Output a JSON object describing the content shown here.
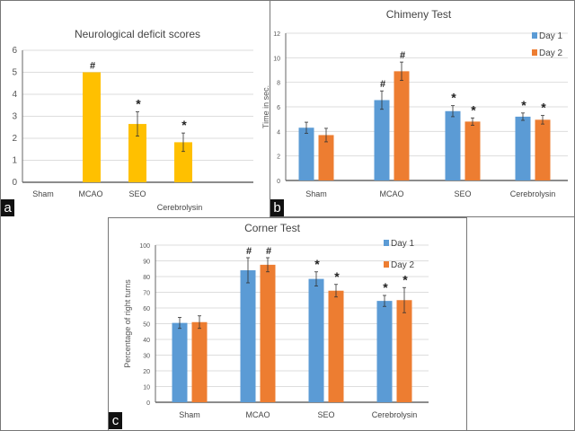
{
  "chart_data": [
    {
      "panel_label": "a",
      "type": "bar",
      "title": "Neurological deficit scores",
      "xlabel": "",
      "ylabel": "",
      "categories": [
        "Sham",
        "MCAO",
        "SEO",
        "Cerebrolysin"
      ],
      "series": [
        {
          "values": [
            0,
            5,
            2.65,
            1.82
          ],
          "errors": [
            0,
            0,
            0.55,
            0.42
          ],
          "color": "#FFC000"
        }
      ],
      "annotations": [
        "",
        "#",
        "*",
        "*"
      ],
      "ylim": [
        0,
        6
      ],
      "yticks": [
        0,
        1,
        2,
        3,
        4,
        5,
        6
      ],
      "grid": true,
      "legend": "none"
    },
    {
      "panel_label": "b",
      "type": "bar",
      "title": "Chimeny Test",
      "xlabel": "",
      "ylabel": "Time in sec.",
      "categories": [
        "Sham",
        "MCAO",
        "SEO",
        "Cerebrolysin"
      ],
      "series": [
        {
          "name": "Day 1",
          "values": [
            4.3,
            6.55,
            5.65,
            5.2
          ],
          "errors": [
            0.45,
            0.75,
            0.45,
            0.3
          ],
          "color": "#5B9BD5",
          "annotations": [
            "",
            "#",
            "*",
            "*"
          ]
        },
        {
          "name": "Day 2",
          "values": [
            3.7,
            8.9,
            4.8,
            4.95
          ],
          "errors": [
            0.55,
            0.75,
            0.3,
            0.35
          ],
          "color": "#ED7D31",
          "annotations": [
            "",
            "#",
            "*",
            "*"
          ]
        }
      ],
      "ylim": [
        0,
        12
      ],
      "yticks": [
        0,
        2,
        4,
        6,
        8,
        10,
        12
      ],
      "grid": true,
      "legend": "top-right"
    },
    {
      "panel_label": "c",
      "type": "bar",
      "title": "Corner Test",
      "xlabel": "",
      "ylabel": "Percentage of right turns",
      "categories": [
        "Sham",
        "MCAO",
        "SEO",
        "Cerebrolysin"
      ],
      "series": [
        {
          "name": "Day 1",
          "values": [
            50.5,
            84,
            78.5,
            64.5
          ],
          "errors": [
            3.5,
            8,
            4.5,
            3.5
          ],
          "color": "#5B9BD5",
          "annotations": [
            "",
            "#",
            "*",
            "*"
          ]
        },
        {
          "name": "Day 2",
          "values": [
            51,
            87.5,
            71,
            65
          ],
          "errors": [
            4,
            4.5,
            4,
            8
          ],
          "color": "#ED7D31",
          "annotations": [
            "",
            "#",
            "*",
            "*"
          ]
        }
      ],
      "ylim": [
        0,
        100
      ],
      "yticks": [
        0,
        10,
        20,
        30,
        40,
        50,
        60,
        70,
        80,
        90,
        100
      ],
      "grid": true,
      "legend": "top-right"
    }
  ]
}
